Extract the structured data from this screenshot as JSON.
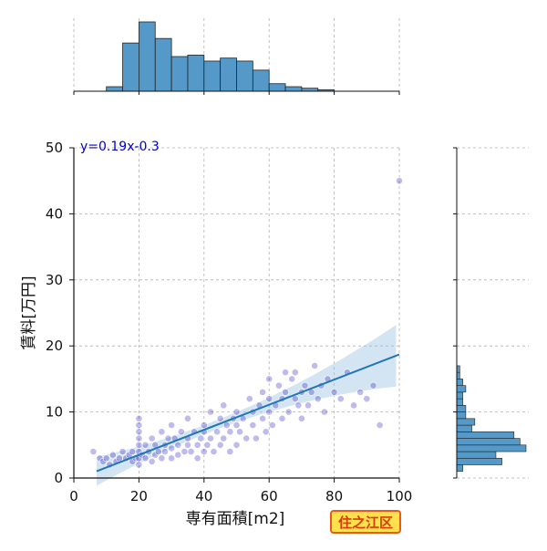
{
  "chart_data": {
    "type": "scatter",
    "title": "",
    "xlabel": "専有面積[m2]",
    "ylabel": "賃料[万円]",
    "xlim": [
      0,
      100
    ],
    "ylim": [
      0,
      50
    ],
    "xticks": [
      0,
      20,
      40,
      60,
      80,
      100
    ],
    "yticks": [
      0,
      10,
      20,
      30,
      40,
      50
    ],
    "grid": true,
    "colors": {
      "points": "#2a1fbf",
      "regression": "#1f77b4",
      "band": "#9ec3e3",
      "hist": "#5499c7",
      "grid": "#b0b0b0"
    },
    "annotation": "y=0.19x-0.3",
    "regression": {
      "slope": 0.19,
      "intercept": -0.3,
      "x_range": [
        7,
        100
      ]
    },
    "badge": "住之江区",
    "x_hist": {
      "bins": [
        [
          10,
          15,
          3
        ],
        [
          15,
          20,
          32
        ],
        [
          20,
          25,
          46
        ],
        [
          25,
          30,
          35
        ],
        [
          30,
          35,
          23
        ],
        [
          35,
          40,
          24
        ],
        [
          40,
          45,
          20
        ],
        [
          45,
          50,
          22
        ],
        [
          50,
          55,
          20
        ],
        [
          55,
          60,
          14
        ],
        [
          60,
          65,
          5
        ],
        [
          65,
          70,
          3
        ],
        [
          70,
          75,
          2
        ],
        [
          75,
          80,
          1
        ]
      ]
    },
    "y_hist": {
      "bins": [
        [
          1,
          2,
          2
        ],
        [
          2,
          3,
          15
        ],
        [
          3,
          4,
          13
        ],
        [
          4,
          5,
          23
        ],
        [
          5,
          6,
          21
        ],
        [
          6,
          7,
          19
        ],
        [
          7,
          8,
          5
        ],
        [
          8,
          9,
          6
        ],
        [
          9,
          10,
          3
        ],
        [
          10,
          11,
          3
        ],
        [
          11,
          12,
          2
        ],
        [
          12,
          13,
          2
        ],
        [
          13,
          14,
          3
        ],
        [
          14,
          15,
          2
        ],
        [
          15,
          16,
          1
        ],
        [
          16,
          17,
          1
        ]
      ]
    },
    "points": [
      [
        6,
        4
      ],
      [
        8,
        3
      ],
      [
        9,
        2.5
      ],
      [
        10,
        3
      ],
      [
        11,
        2
      ],
      [
        12,
        3.5
      ],
      [
        13,
        2.5
      ],
      [
        14,
        3
      ],
      [
        15,
        4
      ],
      [
        16,
        3
      ],
      [
        17,
        3.5
      ],
      [
        18,
        2.5
      ],
      [
        18,
        4
      ],
      [
        19,
        3
      ],
      [
        20,
        9
      ],
      [
        20,
        8
      ],
      [
        20,
        7
      ],
      [
        20,
        6
      ],
      [
        20,
        5
      ],
      [
        20,
        4
      ],
      [
        20,
        3
      ],
      [
        20,
        2
      ],
      [
        21,
        3.5
      ],
      [
        22,
        5
      ],
      [
        22,
        3
      ],
      [
        23,
        4
      ],
      [
        24,
        6
      ],
      [
        24,
        2.5
      ],
      [
        25,
        5
      ],
      [
        25,
        3.5
      ],
      [
        26,
        4
      ],
      [
        27,
        3
      ],
      [
        27,
        7
      ],
      [
        28,
        5
      ],
      [
        28,
        4
      ],
      [
        29,
        6
      ],
      [
        30,
        3
      ],
      [
        30,
        4.5
      ],
      [
        30,
        8
      ],
      [
        31,
        6
      ],
      [
        32,
        5
      ],
      [
        32,
        3.5
      ],
      [
        33,
        7
      ],
      [
        34,
        4
      ],
      [
        35,
        5
      ],
      [
        35,
        6
      ],
      [
        35,
        9
      ],
      [
        36,
        4
      ],
      [
        37,
        7
      ],
      [
        38,
        5
      ],
      [
        38,
        3
      ],
      [
        39,
        6
      ],
      [
        40,
        8
      ],
      [
        40,
        4
      ],
      [
        40,
        7
      ],
      [
        41,
        5
      ],
      [
        42,
        6
      ],
      [
        42,
        10
      ],
      [
        43,
        4
      ],
      [
        44,
        7
      ],
      [
        45,
        9
      ],
      [
        45,
        5
      ],
      [
        46,
        6
      ],
      [
        46,
        11
      ],
      [
        47,
        8
      ],
      [
        48,
        7
      ],
      [
        48,
        4
      ],
      [
        49,
        9
      ],
      [
        50,
        8
      ],
      [
        50,
        5
      ],
      [
        50,
        10
      ],
      [
        51,
        7
      ],
      [
        52,
        9
      ],
      [
        53,
        6
      ],
      [
        54,
        12
      ],
      [
        55,
        8
      ],
      [
        55,
        10
      ],
      [
        56,
        6
      ],
      [
        57,
        11
      ],
      [
        58,
        9
      ],
      [
        58,
        13
      ],
      [
        59,
        7
      ],
      [
        60,
        12
      ],
      [
        60,
        15
      ],
      [
        60,
        10
      ],
      [
        61,
        8
      ],
      [
        62,
        11
      ],
      [
        63,
        14
      ],
      [
        64,
        12
      ],
      [
        64,
        9
      ],
      [
        65,
        16
      ],
      [
        65,
        13
      ],
      [
        66,
        10
      ],
      [
        67,
        15
      ],
      [
        68,
        12
      ],
      [
        68,
        16
      ],
      [
        69,
        11
      ],
      [
        70,
        13
      ],
      [
        70,
        9
      ],
      [
        71,
        14
      ],
      [
        72,
        11
      ],
      [
        73,
        13
      ],
      [
        74,
        17
      ],
      [
        75,
        12
      ],
      [
        76,
        14
      ],
      [
        77,
        10
      ],
      [
        78,
        15
      ],
      [
        80,
        13
      ],
      [
        82,
        12
      ],
      [
        84,
        16
      ],
      [
        86,
        11
      ],
      [
        88,
        13
      ],
      [
        90,
        12
      ],
      [
        92,
        14
      ],
      [
        94,
        8
      ],
      [
        100,
        45
      ]
    ]
  }
}
